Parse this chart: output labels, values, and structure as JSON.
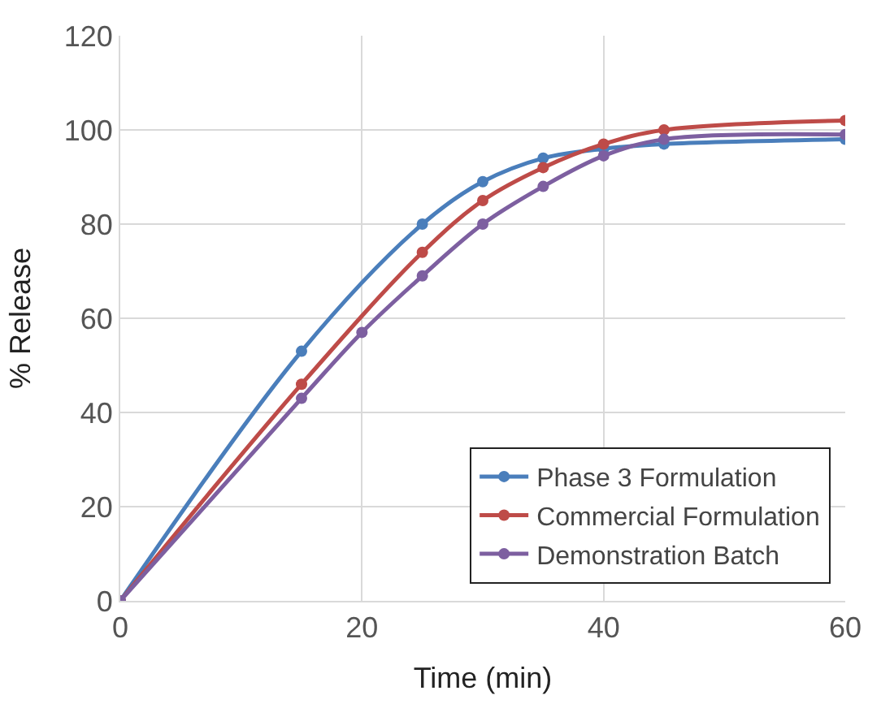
{
  "chart_data": {
    "type": "line",
    "xlabel": "Time (min)",
    "ylabel": "% Release",
    "xlim": [
      0,
      60
    ],
    "xticks": [
      0,
      20,
      40,
      60
    ],
    "ylim": [
      0,
      120
    ],
    "yticks": [
      0,
      20,
      40,
      60,
      80,
      100,
      120
    ],
    "grid": true,
    "legend": "bottom right",
    "marker": "circle",
    "line_style": "solid",
    "series": [
      {
        "name": "Phase 3 Formulation",
        "color": "#4a7ebb",
        "x": [
          0,
          15,
          25,
          30,
          35,
          40,
          45,
          60
        ],
        "values": [
          0,
          53,
          80,
          89,
          94,
          96,
          97,
          98
        ]
      },
      {
        "name": "Commercial Formulation",
        "color": "#be4b48",
        "x": [
          0,
          15,
          25,
          30,
          35,
          40,
          45,
          60
        ],
        "values": [
          0,
          46,
          74,
          85,
          92,
          97,
          100,
          102
        ]
      },
      {
        "name": "Demonstration Batch",
        "color": "#7d5fa0",
        "x": [
          0,
          15,
          20,
          25,
          30,
          35,
          40,
          45,
          60
        ],
        "values": [
          0,
          43,
          57,
          69,
          80,
          88,
          94.5,
          98,
          99
        ]
      }
    ]
  }
}
